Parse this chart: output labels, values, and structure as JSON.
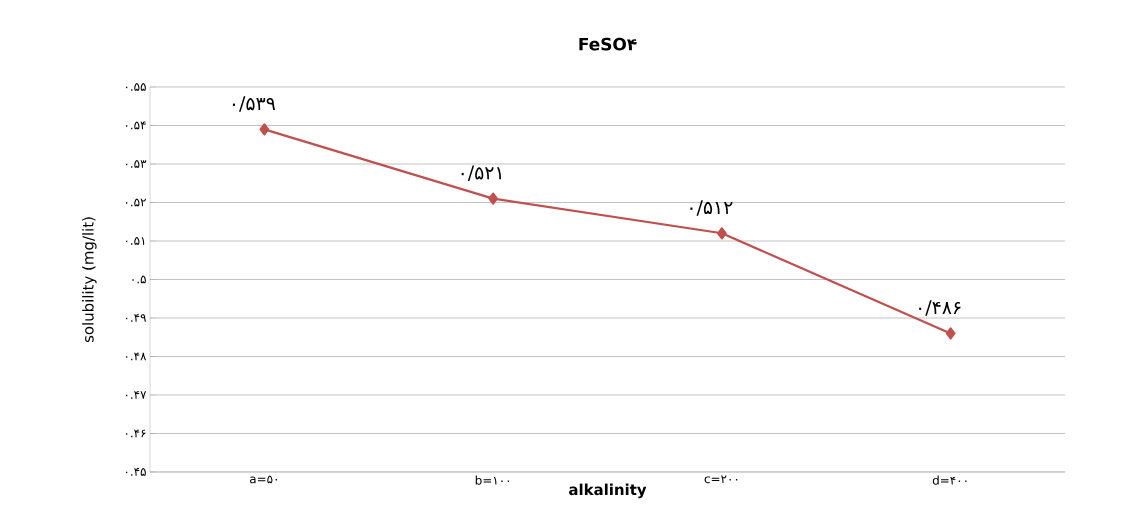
{
  "chart_data": {
    "type": "line",
    "title": "FeSO۴",
    "xlabel": "alkalinity",
    "ylabel": "solubility (mg/lit)",
    "categories": [
      "a=۵۰",
      "b=۱۰۰",
      "c=۲۰۰",
      "d=۴۰۰"
    ],
    "values": [
      0.539,
      0.521,
      0.512,
      0.486
    ],
    "value_labels": [
      "۰/۵۳۹",
      "۰/۵۲۱",
      "۰/۵۱۲",
      "۰/۴۸۶"
    ],
    "color": "#c0504d",
    "marker": "diamond",
    "line_style": "solid",
    "grid": "y",
    "ylim": [
      0.45,
      0.55
    ],
    "yticks": [
      {
        "value": 0.45,
        "label": "۰.۴۵"
      },
      {
        "value": 0.46,
        "label": "۰.۴۶"
      },
      {
        "value": 0.47,
        "label": "۰.۴۷"
      },
      {
        "value": 0.48,
        "label": "۰.۴۸"
      },
      {
        "value": 0.49,
        "label": "۰.۴۹"
      },
      {
        "value": 0.5,
        "label": "۰.۵"
      },
      {
        "value": 0.51,
        "label": "۰.۵۱"
      },
      {
        "value": 0.52,
        "label": "۰.۵۲"
      },
      {
        "value": 0.53,
        "label": "۰.۵۳"
      },
      {
        "value": 0.54,
        "label": "۰.۵۴"
      },
      {
        "value": 0.55,
        "label": "۰.۵۵"
      }
    ]
  }
}
